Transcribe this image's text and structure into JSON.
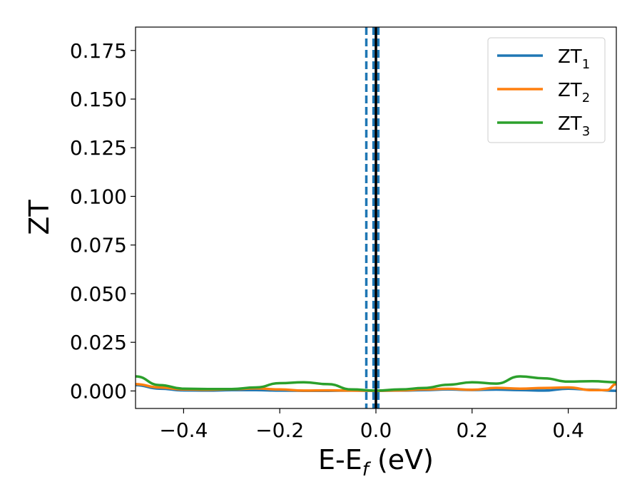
{
  "chart_data": {
    "type": "line",
    "xlabel": "E-E",
    "xlabel_sub": "f",
    "xlabel_unit": "(eV)",
    "ylabel": "ZT",
    "xlim": [
      -0.5,
      0.5
    ],
    "ylim": [
      -0.009,
      0.187
    ],
    "xticks": [
      -0.4,
      -0.2,
      0.0,
      0.2,
      0.4
    ],
    "xtick_labels": [
      "−0.4",
      "−0.2",
      "0.0",
      "0.2",
      "0.4"
    ],
    "yticks": [
      0.0,
      0.025,
      0.05,
      0.075,
      0.1,
      0.125,
      0.15,
      0.175
    ],
    "ytick_labels": [
      "0.000",
      "0.025",
      "0.050",
      "0.075",
      "0.100",
      "0.125",
      "0.150",
      "0.175"
    ],
    "legend_position": "top-right",
    "grid": false,
    "vlines": [
      {
        "x": -0.02,
        "style": "dashed",
        "color": "#1f77b4"
      },
      {
        "x": -0.005,
        "style": "dashed",
        "color": "#1f77b4"
      },
      {
        "x": 0.005,
        "style": "dashed",
        "color": "#1f77b4"
      },
      {
        "x": 0.0,
        "style": "solid",
        "color": "#000000"
      }
    ],
    "series": [
      {
        "name": "ZT",
        "name_sub": "1",
        "color": "#1f77b4",
        "x": [
          -0.5,
          -0.45,
          -0.4,
          -0.35,
          -0.3,
          -0.25,
          -0.2,
          -0.15,
          -0.1,
          -0.05,
          0.0,
          0.05,
          0.1,
          0.15,
          0.2,
          0.25,
          0.3,
          0.35,
          0.4,
          0.45,
          0.5
        ],
        "y": [
          0.003,
          0.0012,
          0.0003,
          0.0002,
          0.0004,
          0.0004,
          0.0002,
          0.0001,
          0.0001,
          0.0002,
          0.0001,
          0.0002,
          0.0004,
          0.0008,
          0.0005,
          0.0007,
          0.0004,
          0.0002,
          0.0012,
          0.0006,
          0.0001
        ]
      },
      {
        "name": "ZT",
        "name_sub": "2",
        "color": "#ff7f0e",
        "x": [
          -0.5,
          -0.45,
          -0.4,
          -0.35,
          -0.3,
          -0.25,
          -0.2,
          -0.15,
          -0.1,
          -0.05,
          0.0,
          0.05,
          0.1,
          0.15,
          0.2,
          0.25,
          0.3,
          0.35,
          0.4,
          0.45,
          0.48,
          0.5
        ],
        "y": [
          0.0035,
          0.0018,
          0.0008,
          0.0006,
          0.0009,
          0.0013,
          0.0008,
          0.0002,
          0.0003,
          0.0002,
          0.0001,
          0.0003,
          0.0008,
          0.0011,
          0.0006,
          0.0016,
          0.0012,
          0.0015,
          0.0018,
          0.0004,
          0.0004,
          0.0035
        ]
      },
      {
        "name": "ZT",
        "name_sub": "3",
        "color": "#2ca02c",
        "x": [
          -0.5,
          -0.45,
          -0.4,
          -0.35,
          -0.3,
          -0.25,
          -0.2,
          -0.15,
          -0.1,
          -0.05,
          0.0,
          0.05,
          0.1,
          0.15,
          0.2,
          0.25,
          0.3,
          0.35,
          0.4,
          0.45,
          0.5
        ],
        "y": [
          0.0075,
          0.003,
          0.0012,
          0.001,
          0.001,
          0.0018,
          0.004,
          0.0045,
          0.0035,
          0.0008,
          0.0002,
          0.0008,
          0.0015,
          0.0032,
          0.0045,
          0.0038,
          0.0075,
          0.0065,
          0.0048,
          0.005,
          0.0045
        ]
      }
    ]
  }
}
